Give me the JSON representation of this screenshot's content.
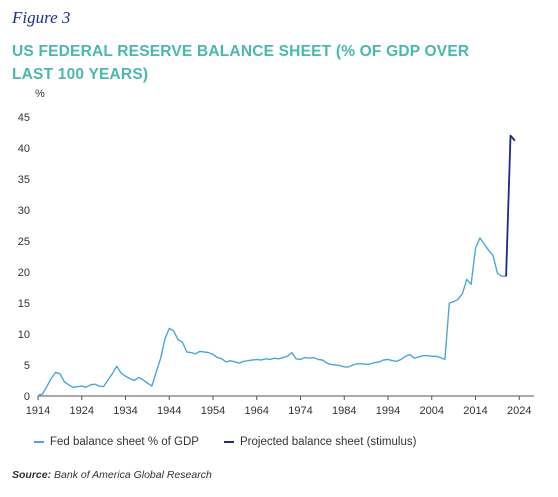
{
  "figure_label": "Figure 3",
  "title": "US FEDERAL RESERVE BALANCE SHEET (% OF GDP OVER LAST 100 YEARS)",
  "source": {
    "label": "Source:",
    "text": "Bank of America Global Research"
  },
  "colors": {
    "title": "#49b9ad",
    "figure": "#1c2f8c",
    "series1": "#4aa8d8",
    "series2": "#1c2a8a",
    "axis": "#555555"
  },
  "chart_data": {
    "type": "line",
    "title": "US FEDERAL RESERVE BALANCE SHEET (% OF GDP OVER LAST 100 YEARS)",
    "ylabel": "%",
    "xlabel": "",
    "xlim": [
      1914,
      2026
    ],
    "ylim": [
      0,
      45
    ],
    "x_ticks": [
      "1914",
      "1924",
      "1934",
      "1944",
      "1954",
      "1964",
      "1974",
      "1984",
      "1994",
      "2004",
      "2014",
      "2024"
    ],
    "y_ticks": [
      "0",
      "5",
      "10",
      "15",
      "20",
      "25",
      "30",
      "35",
      "40",
      "45"
    ],
    "grid": false,
    "legend_position": "bottom",
    "series": [
      {
        "name": "Fed balance sheet % of GDP",
        "color": "#4aa8d8",
        "x": [
          1914,
          1915,
          1916,
          1917,
          1918,
          1919,
          1920,
          1921,
          1922,
          1923,
          1924,
          1925,
          1926,
          1927,
          1928,
          1929,
          1930,
          1931,
          1932,
          1933,
          1934,
          1935,
          1936,
          1937,
          1938,
          1939,
          1940,
          1941,
          1942,
          1943,
          1944,
          1945,
          1946,
          1947,
          1948,
          1949,
          1950,
          1951,
          1952,
          1953,
          1954,
          1955,
          1956,
          1957,
          1958,
          1959,
          1960,
          1961,
          1962,
          1963,
          1964,
          1965,
          1966,
          1967,
          1968,
          1969,
          1970,
          1971,
          1972,
          1973,
          1974,
          1975,
          1976,
          1977,
          1978,
          1979,
          1980,
          1981,
          1982,
          1983,
          1984,
          1985,
          1986,
          1987,
          1988,
          1989,
          1990,
          1991,
          1992,
          1993,
          1994,
          1995,
          1996,
          1997,
          1998,
          1999,
          2000,
          2001,
          2002,
          2003,
          2004,
          2005,
          2006,
          2007,
          2008,
          2009,
          2010,
          2011,
          2012,
          2013,
          2014,
          2015,
          2016,
          2017,
          2018,
          2019,
          2020,
          2021
        ],
        "values": [
          0.1,
          0.3,
          1.5,
          2.8,
          3.8,
          3.6,
          2.3,
          1.8,
          1.4,
          1.5,
          1.6,
          1.4,
          1.8,
          1.9,
          1.6,
          1.5,
          2.6,
          3.6,
          4.8,
          3.7,
          3.2,
          2.8,
          2.5,
          3.0,
          2.6,
          2.1,
          1.6,
          3.8,
          6.0,
          9.2,
          10.9,
          10.5,
          9.1,
          8.7,
          7.1,
          7.0,
          6.8,
          7.2,
          7.1,
          7.0,
          6.7,
          6.2,
          6.0,
          5.5,
          5.7,
          5.5,
          5.3,
          5.6,
          5.7,
          5.8,
          5.9,
          5.8,
          6.0,
          5.9,
          6.1,
          6.0,
          6.2,
          6.4,
          7.0,
          6.0,
          5.9,
          6.2,
          6.1,
          6.2,
          5.9,
          5.8,
          5.3,
          5.1,
          5.0,
          4.9,
          4.7,
          4.7,
          5.0,
          5.2,
          5.2,
          5.1,
          5.2,
          5.4,
          5.5,
          5.8,
          5.9,
          5.7,
          5.6,
          5.9,
          6.4,
          6.7,
          6.1,
          6.3,
          6.5,
          6.5,
          6.4,
          6.4,
          6.2,
          5.9,
          15.0,
          15.2,
          15.6,
          16.5,
          18.8,
          18.0,
          23.8,
          25.5,
          24.5,
          23.5,
          22.7,
          19.8,
          19.3,
          19.3
        ]
      },
      {
        "name": "Projected balance sheet (stimulus)",
        "color": "#1c2a8a",
        "x": [
          2021,
          2022,
          2023
        ],
        "values": [
          19.3,
          42.0,
          41.2
        ]
      }
    ]
  }
}
